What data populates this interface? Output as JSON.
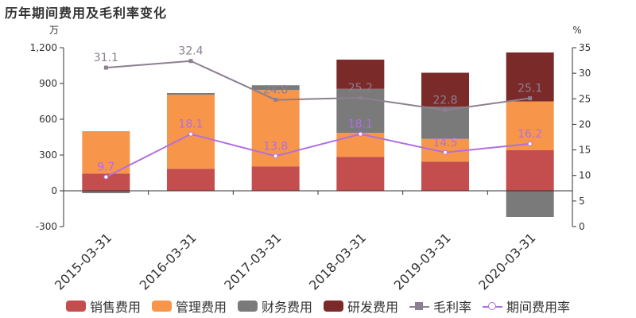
{
  "title": "历年期间费用及毛利率变化",
  "chart_data": {
    "type": "bar",
    "stacked": true,
    "categories": [
      "2015-03-31",
      "2016-03-31",
      "2017-03-31",
      "2018-03-31",
      "2019-03-31",
      "2020-03-31"
    ],
    "series": [
      {
        "name": "销售费用",
        "color": "#c44d4d",
        "values": [
          145,
          185,
          205,
          285,
          245,
          340
        ]
      },
      {
        "name": "管理费用",
        "color": "#f7964a",
        "values": [
          355,
          620,
          640,
          200,
          190,
          410
        ]
      },
      {
        "name": "财务费用",
        "color": "#7a7a7a",
        "values": [
          -20,
          15,
          40,
          370,
          270,
          -220
        ]
      },
      {
        "name": "研发费用",
        "color": "#7b2a2a",
        "values": [
          0,
          0,
          0,
          245,
          285,
          410
        ]
      }
    ],
    "lines": [
      {
        "name": "毛利率",
        "color": "#8c7f8f",
        "marker": "square",
        "values": [
          31.1,
          32.4,
          24.8,
          25.2,
          22.8,
          25.1
        ],
        "labels": [
          "31.1",
          "32.4",
          "24.8",
          "25.2",
          "22.8",
          "25.1"
        ]
      },
      {
        "name": "期间费用率",
        "color": "#b06ee0",
        "marker": "circle",
        "values": [
          9.7,
          18.1,
          13.8,
          18.1,
          14.5,
          16.2
        ],
        "labels": [
          "9.7",
          "18.1",
          "13.8",
          "18.1",
          "14.5",
          "16.2"
        ]
      }
    ],
    "y_left": {
      "unit": "万",
      "ylim": [
        -300,
        1200
      ],
      "ticks": [
        "-300",
        "0",
        "300",
        "600",
        "900",
        "1,200"
      ],
      "tick_values": [
        -300,
        0,
        300,
        600,
        900,
        1200
      ]
    },
    "y_right": {
      "unit": "%",
      "ylim": [
        0,
        35
      ],
      "ticks": [
        "0",
        "5",
        "10",
        "15",
        "20",
        "25",
        "30",
        "35"
      ],
      "tick_values": [
        0,
        5,
        10,
        15,
        20,
        25,
        30,
        35
      ]
    },
    "legend_position": "bottom"
  },
  "legend": [
    {
      "label": "销售费用",
      "color": "#c44d4d",
      "kind": "bar"
    },
    {
      "label": "管理费用",
      "color": "#f7964a",
      "kind": "bar"
    },
    {
      "label": "财务费用",
      "color": "#7a7a7a",
      "kind": "bar"
    },
    {
      "label": "研发费用",
      "color": "#7b2a2a",
      "kind": "bar"
    },
    {
      "label": "毛利率",
      "color": "#8c7f8f",
      "kind": "line-square"
    },
    {
      "label": "期间费用率",
      "color": "#b06ee0",
      "kind": "line-circle"
    }
  ]
}
